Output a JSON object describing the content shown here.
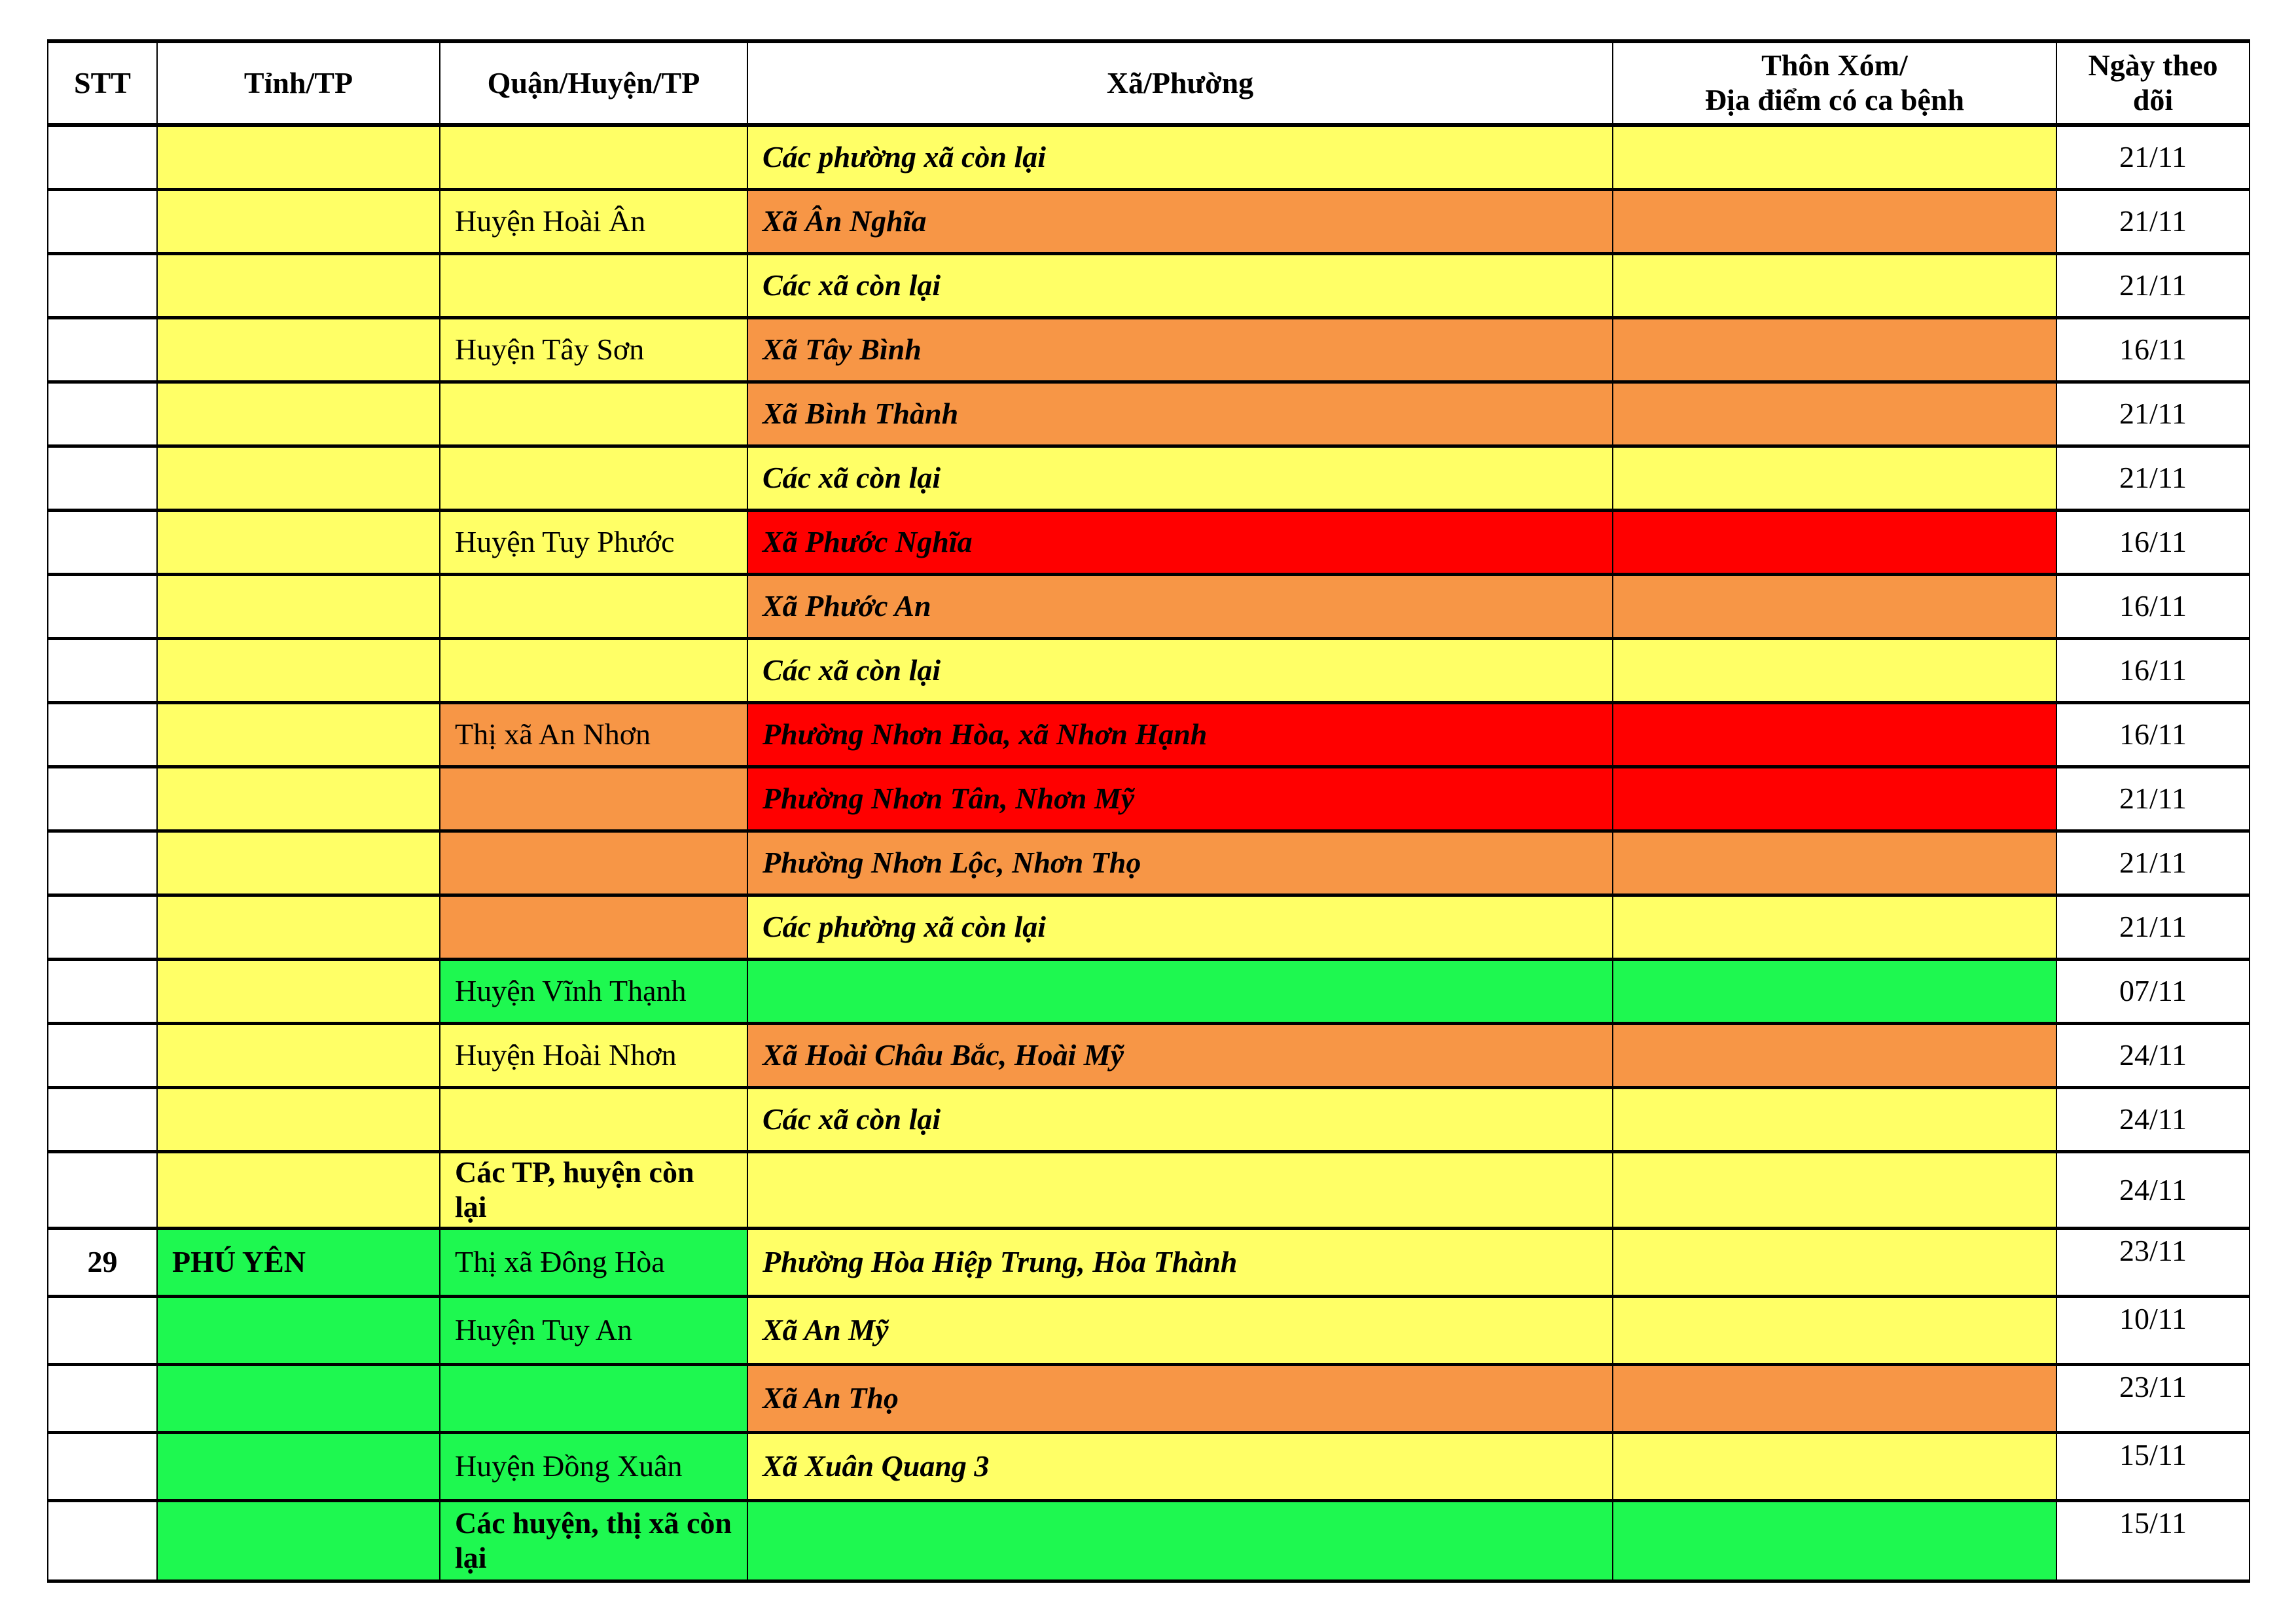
{
  "colors": {
    "white": "#FFFFFF",
    "yellow": "#FFFF66",
    "orange": "#F79646",
    "red": "#FF0000",
    "green": "#1EF850"
  },
  "headers": [
    "STT",
    "Tỉnh/TP",
    "Quận/Huyện/TP",
    "Xã/Phường",
    "Thôn Xóm/\nĐịa điểm có ca bệnh",
    "Ngày theo\ndõi"
  ],
  "rows": [
    {
      "stt": "",
      "tinh": "",
      "tinh_c": "yellow",
      "quan": "",
      "quan_c": "yellow",
      "xa": "Các phường xã còn lại",
      "xa_c": "yellow",
      "thon_c": "yellow",
      "date": "21/11"
    },
    {
      "stt": "",
      "tinh": "",
      "tinh_c": "yellow",
      "quan": "Huyện Hoài Ân",
      "quan_c": "yellow",
      "xa": "Xã Ân Nghĩa",
      "xa_c": "orange",
      "thon_c": "orange",
      "date": "21/11"
    },
    {
      "stt": "",
      "tinh": "",
      "tinh_c": "yellow",
      "quan": "",
      "quan_c": "yellow",
      "xa": "Các xã còn lại",
      "xa_c": "yellow",
      "thon_c": "yellow",
      "date": "21/11"
    },
    {
      "stt": "",
      "tinh": "",
      "tinh_c": "yellow",
      "quan": "Huyện Tây Sơn",
      "quan_c": "yellow",
      "xa": "Xã Tây Bình",
      "xa_c": "orange",
      "thon_c": "orange",
      "date": "16/11"
    },
    {
      "stt": "",
      "tinh": "",
      "tinh_c": "yellow",
      "quan": "",
      "quan_c": "yellow",
      "xa": "Xã Bình Thành",
      "xa_c": "orange",
      "thon_c": "orange",
      "date": "21/11"
    },
    {
      "stt": "",
      "tinh": "",
      "tinh_c": "yellow",
      "quan": "",
      "quan_c": "yellow",
      "xa": "Các xã còn lại",
      "xa_c": "yellow",
      "thon_c": "yellow",
      "date": "21/11"
    },
    {
      "stt": "",
      "tinh": "",
      "tinh_c": "yellow",
      "quan": "Huyện Tuy Phước",
      "quan_c": "yellow",
      "xa": "Xã Phước Nghĩa",
      "xa_c": "red",
      "thon_c": "red",
      "date": "16/11"
    },
    {
      "stt": "",
      "tinh": "",
      "tinh_c": "yellow",
      "quan": "",
      "quan_c": "yellow",
      "xa": "Xã Phước An",
      "xa_c": "orange",
      "thon_c": "orange",
      "date": "16/11"
    },
    {
      "stt": "",
      "tinh": "",
      "tinh_c": "yellow",
      "quan": "",
      "quan_c": "yellow",
      "xa": "Các xã còn lại",
      "xa_c": "yellow",
      "thon_c": "yellow",
      "date": "16/11"
    },
    {
      "stt": "",
      "tinh": "",
      "tinh_c": "yellow",
      "quan": "Thị xã An Nhơn",
      "quan_c": "orange",
      "xa": "Phường Nhơn Hòa, xã Nhơn Hạnh",
      "xa_c": "red",
      "thon_c": "red",
      "date": "16/11"
    },
    {
      "stt": "",
      "tinh": "",
      "tinh_c": "yellow",
      "quan": "",
      "quan_c": "orange",
      "xa": "Phường Nhơn Tân, Nhơn Mỹ",
      "xa_c": "red",
      "thon_c": "red",
      "date": "21/11"
    },
    {
      "stt": "",
      "tinh": "",
      "tinh_c": "yellow",
      "quan": "",
      "quan_c": "orange",
      "xa": "Phường Nhơn Lộc, Nhơn Thọ",
      "xa_c": "orange",
      "thon_c": "orange",
      "date": "21/11"
    },
    {
      "stt": "",
      "tinh": "",
      "tinh_c": "yellow",
      "quan": "",
      "quan_c": "orange",
      "xa": "Các phường xã còn lại",
      "xa_c": "yellow",
      "thon_c": "yellow",
      "date": "21/11"
    },
    {
      "stt": "",
      "tinh": "",
      "tinh_c": "yellow",
      "quan": "Huyện Vĩnh Thạnh",
      "quan_c": "green",
      "xa": "",
      "xa_c": "green",
      "thon_c": "green",
      "date": "07/11"
    },
    {
      "stt": "",
      "tinh": "",
      "tinh_c": "yellow",
      "quan": "Huyện Hoài Nhơn",
      "quan_c": "yellow",
      "xa": "Xã Hoài Châu Bắc, Hoài Mỹ",
      "xa_c": "orange",
      "thon_c": "orange",
      "date": "24/11"
    },
    {
      "stt": "",
      "tinh": "",
      "tinh_c": "yellow",
      "quan": "",
      "quan_c": "yellow",
      "xa": "Các xã còn lại",
      "xa_c": "yellow",
      "thon_c": "yellow",
      "date": "24/11"
    },
    {
      "stt": "",
      "tinh": "",
      "tinh_c": "yellow",
      "quan": "Các TP, huyện còn lại",
      "quan_bold": true,
      "quan_c": "yellow",
      "xa": "",
      "xa_c": "yellow",
      "thon_c": "yellow",
      "date": "24/11",
      "tall": true
    },
    {
      "stt": "29",
      "tinh": "PHÚ YÊN",
      "tinh_c": "green",
      "quan": "Thị xã Đông Hòa",
      "quan_c": "green",
      "xa": "Phường Hòa Hiệp Trung, Hòa Thành",
      "xa_c": "yellow",
      "thon_c": "yellow",
      "date": "23/11",
      "py": true
    },
    {
      "stt": "",
      "tinh": "",
      "tinh_c": "green",
      "quan": "Huyện Tuy An",
      "quan_c": "green",
      "xa": "Xã An Mỹ",
      "xa_c": "yellow",
      "thon_c": "yellow",
      "date": "10/11",
      "py": true
    },
    {
      "stt": "",
      "tinh": "",
      "tinh_c": "green",
      "quan": "",
      "quan_c": "green",
      "xa": "Xã An Thọ",
      "xa_c": "orange",
      "thon_c": "orange",
      "date": "23/11",
      "py": true
    },
    {
      "stt": "",
      "tinh": "",
      "tinh_c": "green",
      "quan": "Huyện Đồng Xuân",
      "quan_c": "green",
      "xa": "Xã Xuân Quang 3",
      "xa_c": "yellow",
      "thon_c": "yellow",
      "date": "15/11",
      "py": true
    },
    {
      "stt": "",
      "tinh": "",
      "tinh_c": "green",
      "quan": "Các huyện, thị xã còn lại",
      "quan_bold": true,
      "quan_c": "green",
      "xa": "",
      "xa_c": "green",
      "thon_c": "green",
      "date": "15/11",
      "py": true,
      "tall": true
    }
  ]
}
